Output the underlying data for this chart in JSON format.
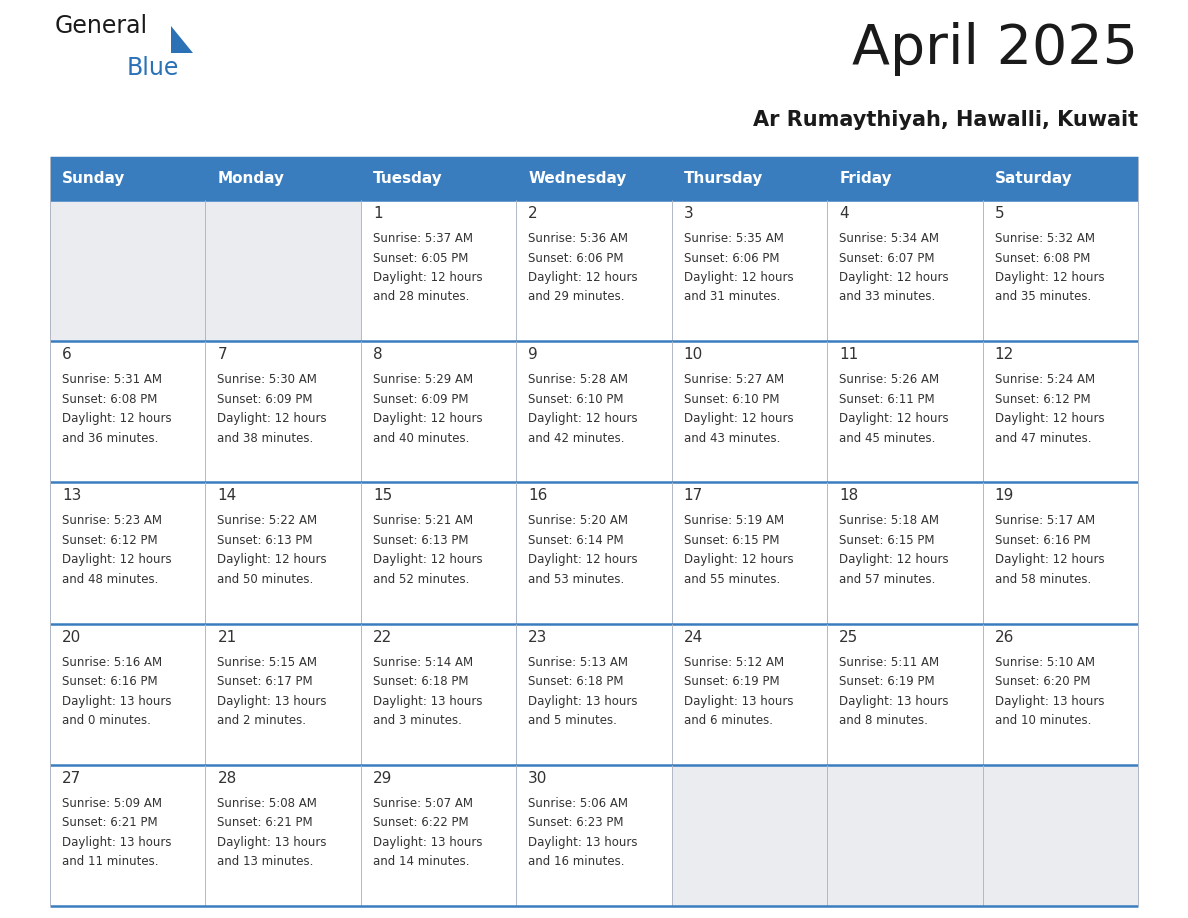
{
  "title": "April 2025",
  "subtitle": "Ar Rumaythiyah, Hawalli, Kuwait",
  "header_bg": "#3a7dbf",
  "header_text": "#ffffff",
  "cell_bg_empty": "#eaecf0",
  "cell_bg_filled": "#ffffff",
  "border_color_thick": "#3a7dbf",
  "border_color_thin": "#b0b8c8",
  "text_color": "#333333",
  "days_of_week": [
    "Sunday",
    "Monday",
    "Tuesday",
    "Wednesday",
    "Thursday",
    "Friday",
    "Saturday"
  ],
  "calendar_data": [
    [
      {
        "day": "",
        "sunrise": "",
        "sunset": "",
        "daylight": "",
        "daylight2": ""
      },
      {
        "day": "",
        "sunrise": "",
        "sunset": "",
        "daylight": "",
        "daylight2": ""
      },
      {
        "day": "1",
        "sunrise": "5:37 AM",
        "sunset": "6:05 PM",
        "daylight": "12 hours",
        "daylight2": "and 28 minutes."
      },
      {
        "day": "2",
        "sunrise": "5:36 AM",
        "sunset": "6:06 PM",
        "daylight": "12 hours",
        "daylight2": "and 29 minutes."
      },
      {
        "day": "3",
        "sunrise": "5:35 AM",
        "sunset": "6:06 PM",
        "daylight": "12 hours",
        "daylight2": "and 31 minutes."
      },
      {
        "day": "4",
        "sunrise": "5:34 AM",
        "sunset": "6:07 PM",
        "daylight": "12 hours",
        "daylight2": "and 33 minutes."
      },
      {
        "day": "5",
        "sunrise": "5:32 AM",
        "sunset": "6:08 PM",
        "daylight": "12 hours",
        "daylight2": "and 35 minutes."
      }
    ],
    [
      {
        "day": "6",
        "sunrise": "5:31 AM",
        "sunset": "6:08 PM",
        "daylight": "12 hours",
        "daylight2": "and 36 minutes."
      },
      {
        "day": "7",
        "sunrise": "5:30 AM",
        "sunset": "6:09 PM",
        "daylight": "12 hours",
        "daylight2": "and 38 minutes."
      },
      {
        "day": "8",
        "sunrise": "5:29 AM",
        "sunset": "6:09 PM",
        "daylight": "12 hours",
        "daylight2": "and 40 minutes."
      },
      {
        "day": "9",
        "sunrise": "5:28 AM",
        "sunset": "6:10 PM",
        "daylight": "12 hours",
        "daylight2": "and 42 minutes."
      },
      {
        "day": "10",
        "sunrise": "5:27 AM",
        "sunset": "6:10 PM",
        "daylight": "12 hours",
        "daylight2": "and 43 minutes."
      },
      {
        "day": "11",
        "sunrise": "5:26 AM",
        "sunset": "6:11 PM",
        "daylight": "12 hours",
        "daylight2": "and 45 minutes."
      },
      {
        "day": "12",
        "sunrise": "5:24 AM",
        "sunset": "6:12 PM",
        "daylight": "12 hours",
        "daylight2": "and 47 minutes."
      }
    ],
    [
      {
        "day": "13",
        "sunrise": "5:23 AM",
        "sunset": "6:12 PM",
        "daylight": "12 hours",
        "daylight2": "and 48 minutes."
      },
      {
        "day": "14",
        "sunrise": "5:22 AM",
        "sunset": "6:13 PM",
        "daylight": "12 hours",
        "daylight2": "and 50 minutes."
      },
      {
        "day": "15",
        "sunrise": "5:21 AM",
        "sunset": "6:13 PM",
        "daylight": "12 hours",
        "daylight2": "and 52 minutes."
      },
      {
        "day": "16",
        "sunrise": "5:20 AM",
        "sunset": "6:14 PM",
        "daylight": "12 hours",
        "daylight2": "and 53 minutes."
      },
      {
        "day": "17",
        "sunrise": "5:19 AM",
        "sunset": "6:15 PM",
        "daylight": "12 hours",
        "daylight2": "and 55 minutes."
      },
      {
        "day": "18",
        "sunrise": "5:18 AM",
        "sunset": "6:15 PM",
        "daylight": "12 hours",
        "daylight2": "and 57 minutes."
      },
      {
        "day": "19",
        "sunrise": "5:17 AM",
        "sunset": "6:16 PM",
        "daylight": "12 hours",
        "daylight2": "and 58 minutes."
      }
    ],
    [
      {
        "day": "20",
        "sunrise": "5:16 AM",
        "sunset": "6:16 PM",
        "daylight": "13 hours",
        "daylight2": "and 0 minutes."
      },
      {
        "day": "21",
        "sunrise": "5:15 AM",
        "sunset": "6:17 PM",
        "daylight": "13 hours",
        "daylight2": "and 2 minutes."
      },
      {
        "day": "22",
        "sunrise": "5:14 AM",
        "sunset": "6:18 PM",
        "daylight": "13 hours",
        "daylight2": "and 3 minutes."
      },
      {
        "day": "23",
        "sunrise": "5:13 AM",
        "sunset": "6:18 PM",
        "daylight": "13 hours",
        "daylight2": "and 5 minutes."
      },
      {
        "day": "24",
        "sunrise": "5:12 AM",
        "sunset": "6:19 PM",
        "daylight": "13 hours",
        "daylight2": "and 6 minutes."
      },
      {
        "day": "25",
        "sunrise": "5:11 AM",
        "sunset": "6:19 PM",
        "daylight": "13 hours",
        "daylight2": "and 8 minutes."
      },
      {
        "day": "26",
        "sunrise": "5:10 AM",
        "sunset": "6:20 PM",
        "daylight": "13 hours",
        "daylight2": "and 10 minutes."
      }
    ],
    [
      {
        "day": "27",
        "sunrise": "5:09 AM",
        "sunset": "6:21 PM",
        "daylight": "13 hours",
        "daylight2": "and 11 minutes."
      },
      {
        "day": "28",
        "sunrise": "5:08 AM",
        "sunset": "6:21 PM",
        "daylight": "13 hours",
        "daylight2": "and 13 minutes."
      },
      {
        "day": "29",
        "sunrise": "5:07 AM",
        "sunset": "6:22 PM",
        "daylight": "13 hours",
        "daylight2": "and 14 minutes."
      },
      {
        "day": "30",
        "sunrise": "5:06 AM",
        "sunset": "6:23 PM",
        "daylight": "13 hours",
        "daylight2": "and 16 minutes."
      },
      {
        "day": "",
        "sunrise": "",
        "sunset": "",
        "daylight": "",
        "daylight2": ""
      },
      {
        "day": "",
        "sunrise": "",
        "sunset": "",
        "daylight": "",
        "daylight2": ""
      },
      {
        "day": "",
        "sunrise": "",
        "sunset": "",
        "daylight": "",
        "daylight2": ""
      }
    ]
  ],
  "fig_width": 11.88,
  "fig_height": 9.18,
  "dpi": 100
}
